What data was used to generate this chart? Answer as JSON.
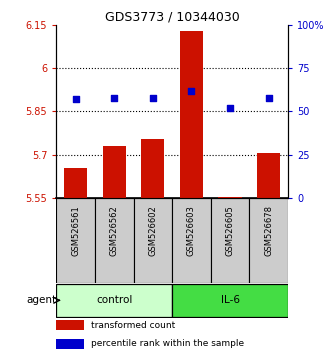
{
  "title": "GDS3773 / 10344030",
  "samples": [
    "GSM526561",
    "GSM526562",
    "GSM526602",
    "GSM526603",
    "GSM526605",
    "GSM526678"
  ],
  "bar_values": [
    5.655,
    5.73,
    5.755,
    6.13,
    5.555,
    5.705
  ],
  "dot_values": [
    57,
    58,
    58,
    62,
    52,
    58
  ],
  "bar_color": "#cc1100",
  "dot_color": "#0000cc",
  "ylim_left": [
    5.55,
    6.15
  ],
  "ylim_right": [
    0,
    100
  ],
  "yticks_left": [
    5.55,
    5.7,
    5.85,
    6.0,
    6.15
  ],
  "ytick_labels_left": [
    "5.55",
    "5.7",
    "5.85",
    "6",
    "6.15"
  ],
  "yticks_right": [
    0,
    25,
    50,
    75,
    100
  ],
  "ytick_labels_right": [
    "0",
    "25",
    "50",
    "75",
    "100%"
  ],
  "hlines": [
    5.7,
    5.85,
    6.0
  ],
  "control_color": "#ccffcc",
  "il6_color": "#44dd44",
  "agent_label": "agent",
  "control_label": "control",
  "il6_label": "IL-6",
  "legend_bar": "transformed count",
  "legend_dot": "percentile rank within the sample",
  "bar_bottom": 5.55,
  "sample_bg": "#cccccc"
}
